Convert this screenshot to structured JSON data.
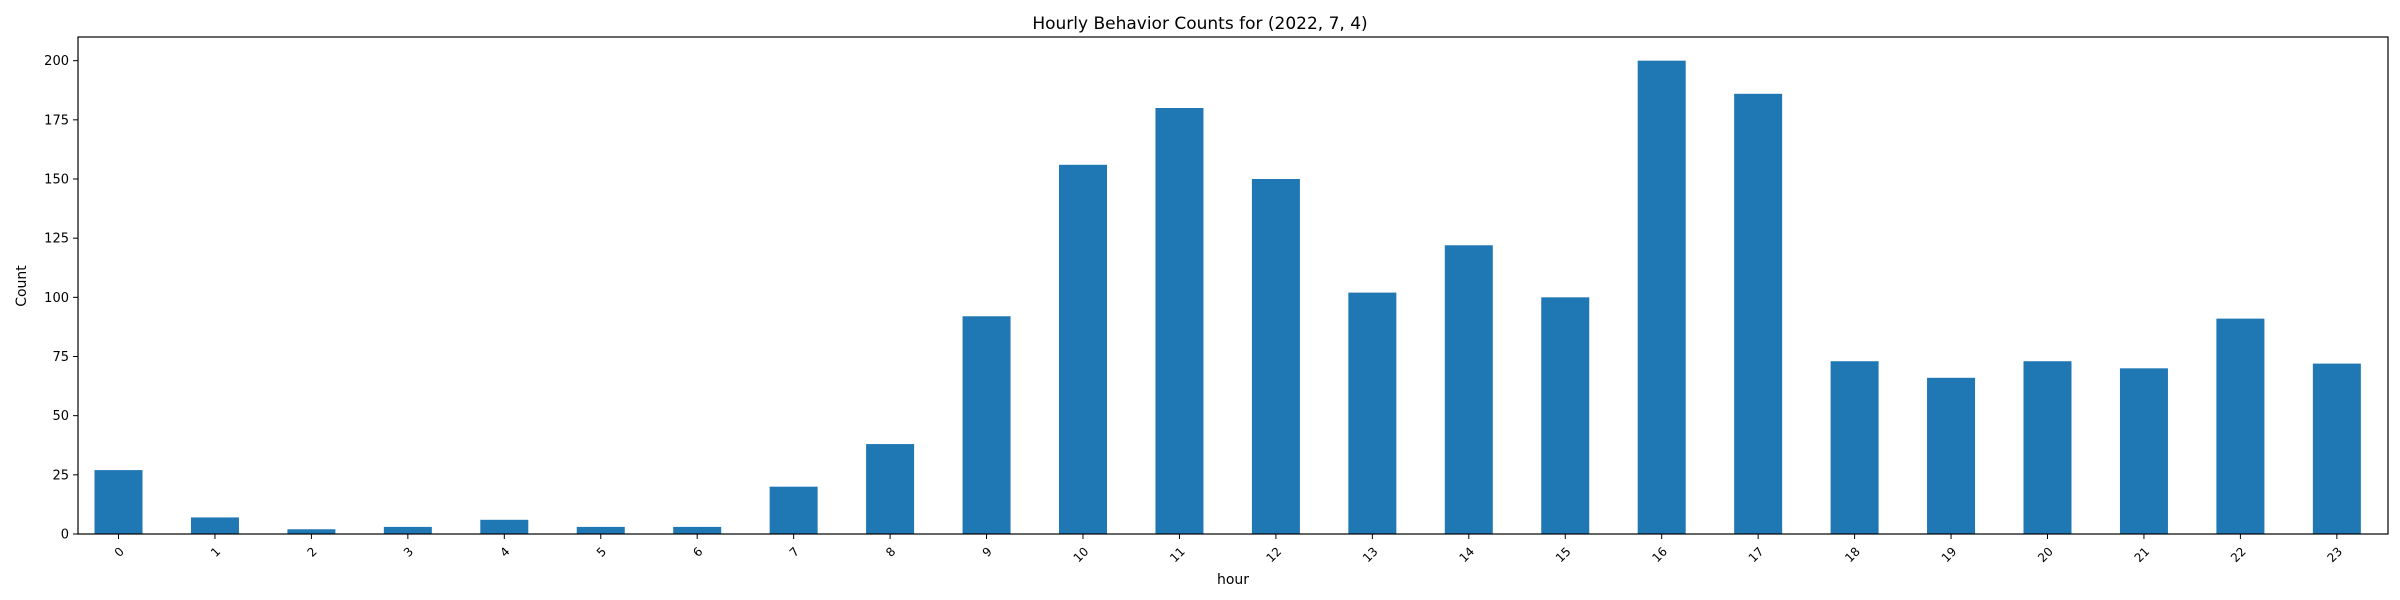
{
  "chart_data": {
    "type": "bar",
    "title": "Hourly Behavior Counts for (2022, 7, 4)",
    "xlabel": "hour",
    "ylabel": "Count",
    "categories": [
      "0",
      "1",
      "2",
      "3",
      "4",
      "5",
      "6",
      "7",
      "8",
      "9",
      "10",
      "11",
      "12",
      "13",
      "14",
      "15",
      "16",
      "17",
      "18",
      "19",
      "20",
      "21",
      "22",
      "23"
    ],
    "values": [
      27,
      7,
      2,
      3,
      6,
      3,
      3,
      20,
      38,
      92,
      156,
      180,
      150,
      102,
      122,
      100,
      200,
      186,
      73,
      66,
      73,
      70,
      91,
      72
    ],
    "ylim": [
      0,
      210
    ],
    "yticks": [
      0,
      25,
      50,
      75,
      100,
      125,
      150,
      175,
      200
    ],
    "grid": false,
    "bar_color": "#1f77b4",
    "xtick_rotation": 45
  }
}
